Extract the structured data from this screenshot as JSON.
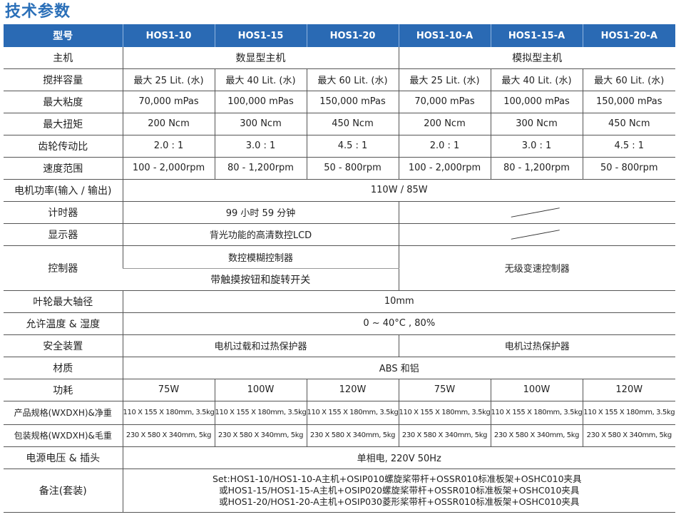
{
  "title": "技术参数",
  "header": [
    "型号",
    "HOS1-10",
    "HOS1-15",
    "HOS1-20",
    "HOS1-10-A",
    "HOS1-15-A",
    "HOS1-20-A"
  ],
  "rows": {
    "host": {
      "label": "主机",
      "digital": "数显型主机",
      "analog": "模拟型主机"
    },
    "capacity": {
      "label": "搅拌容量",
      "values": [
        "最大 25 Lit. (水)",
        "最大 40 Lit. (水)",
        "最大 60 Lit. (水)",
        "最大 25 Lit. (水)",
        "最大 40 Lit. (水)",
        "最大 60 Lit. (水)"
      ]
    },
    "viscosity": {
      "label": "最大粘度",
      "values": [
        "70,000 mPas",
        "100,000 mPas",
        "150,000 mPas",
        "70,000 mPas",
        "100,000 mPas",
        "150,000 mPas"
      ]
    },
    "torque": {
      "label": "最大扭矩",
      "values": [
        "200 Ncm",
        "300 Ncm",
        "450 Ncm",
        "200 Ncm",
        "300 Ncm",
        "450 Ncm"
      ]
    },
    "gear": {
      "label": "齿轮传动比",
      "values": [
        "2.0 : 1",
        "3.0 : 1",
        "4.5 : 1",
        "2.0 : 1",
        "3.0 : 1",
        "4.5 : 1"
      ]
    },
    "speed": {
      "label": "速度范围",
      "values": [
        "100 - 2,000rpm",
        "80 - 1,200rpm",
        "50 - 800rpm",
        "100 - 2,000rpm",
        "80 - 1,200rpm",
        "50 - 800rpm"
      ]
    },
    "power": {
      "label": "电机功率(输入 / 输出)",
      "value": "110W / 85W"
    },
    "timer": {
      "label": "计时器",
      "digital": "99 小时 59 分钟"
    },
    "display": {
      "label": "显示器",
      "digital": "背光功能的高清数控LCD"
    },
    "controller": {
      "label": "控制器",
      "digital1": "数控模糊控制器",
      "digital2": "带触摸按钮和旋转开关",
      "analog": "无级变速控制器"
    },
    "shaft": {
      "label": "叶轮最大轴径",
      "value": "10mm"
    },
    "env": {
      "label": "允许温度 & 湿度",
      "value": "0 ~ 40°C , 80%"
    },
    "safety": {
      "label": "安全装置",
      "digital": "电机过载和过热保护器",
      "analog": "电机过热保护器"
    },
    "material": {
      "label": "材质",
      "value": "ABS 和铝"
    },
    "consumption": {
      "label": "功耗",
      "values": [
        "75W",
        "100W",
        "120W",
        "75W",
        "100W",
        "120W"
      ]
    },
    "product_size": {
      "label": "产品规格(WXDXH)&净重",
      "values": [
        "110 X 155 X 180mm, 3.5kg",
        "110 X 155 X 180mm, 3.5kg",
        "110 X 155 X 180mm, 3.5kg",
        "110 X 155 X 180mm, 3.5kg",
        "110 X 155 X 180mm, 3.5kg",
        "110 X 155 X 180mm, 3.5kg"
      ]
    },
    "package_size": {
      "label": "包装规格(WXDXH)&毛重",
      "values": [
        "230 X 580 X 340mm, 5kg",
        "230 X 580 X 340mm, 5kg",
        "230 X 580 X 340mm, 5kg",
        "230 X 580 X 340mm, 5kg",
        "230 X 580 X 340mm, 5kg",
        "230 X 580 X 340mm, 5kg"
      ]
    },
    "supply": {
      "label": "电源电压 & 插头",
      "value": "单相电, 220V 50Hz"
    },
    "notes": {
      "label": "备注(套装)",
      "lines": [
        "Set:HOS1-10/HOS1-10-A主机+OSIP010螺旋桨带杆+OSSR010标准板架+OSHC010夹具",
        "或HOS1-15/HOS1-15-A主机+OSIP020螺旋桨带杆+OSSR010标准板架+OSHC010夹具",
        "或HOS1-20/HOS1-20-A主机+OSIP030菱形桨带杆+OSSR010标准板架+OSHC010夹具"
      ]
    }
  }
}
